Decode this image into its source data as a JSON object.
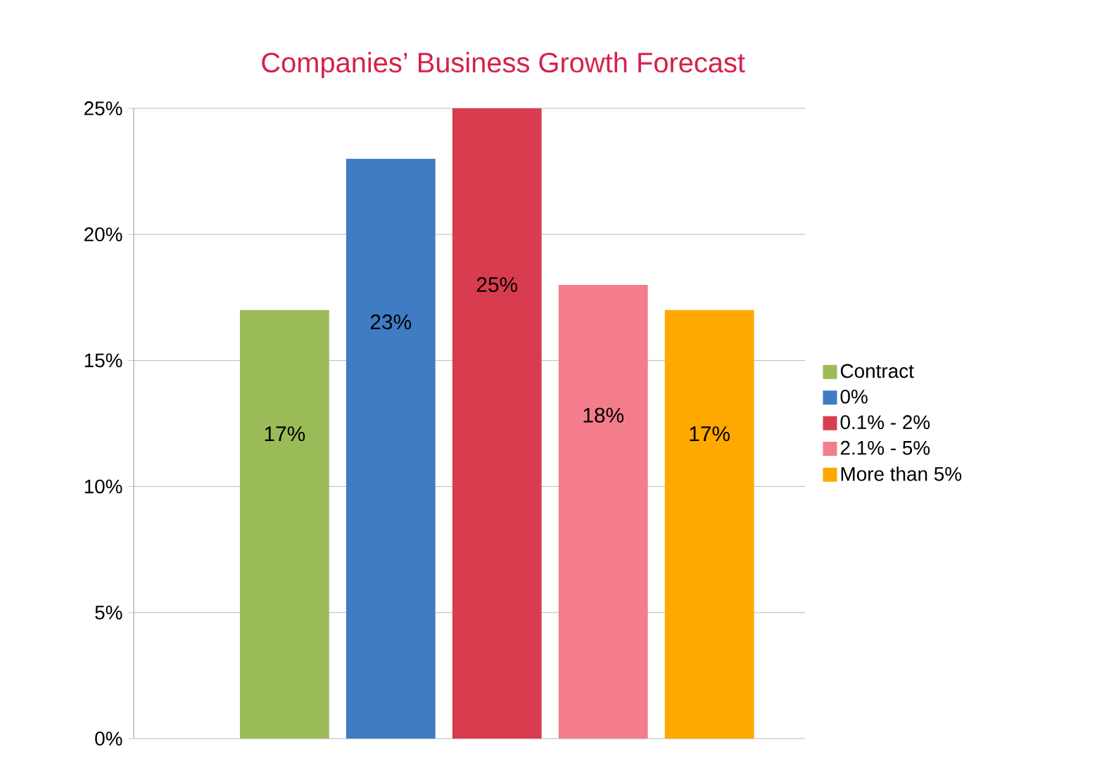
{
  "chart_data": {
    "type": "bar",
    "title": "Companies’ Business Growth Forecast",
    "categories": [
      null
    ],
    "series": [
      {
        "name": "Contract",
        "color": "#9bbb59",
        "values": [
          17
        ],
        "value_labels": [
          "17%"
        ]
      },
      {
        "name": "0%",
        "color": "#3f7cc4",
        "values": [
          23
        ],
        "value_labels": [
          "23%"
        ]
      },
      {
        "name": "0.1% - 2%",
        "color": "#d93c4e",
        "values": [
          25
        ],
        "value_labels": [
          "25%"
        ]
      },
      {
        "name": "2.1% - 5%",
        "color": "#f47d8b",
        "values": [
          18
        ],
        "value_labels": [
          "18%"
        ]
      },
      {
        "name": "More than 5%",
        "color": "#ffa800",
        "values": [
          17
        ],
        "value_labels": [
          "17%"
        ]
      }
    ],
    "ylim": [
      0,
      25
    ],
    "yticks": [
      {
        "value": 0,
        "label": "0%"
      },
      {
        "value": 5,
        "label": "5%"
      },
      {
        "value": 10,
        "label": "10%"
      },
      {
        "value": 15,
        "label": "15%"
      },
      {
        "value": 20,
        "label": "20%"
      },
      {
        "value": 25,
        "label": "25%"
      }
    ],
    "grid": "y",
    "legend": "right"
  }
}
